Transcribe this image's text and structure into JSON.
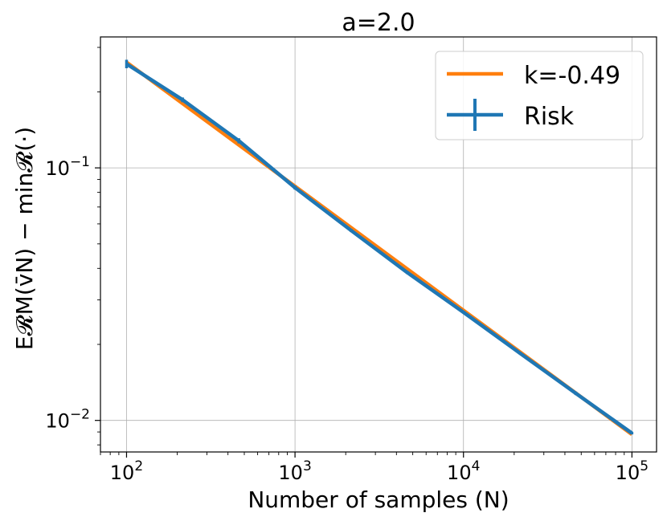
{
  "chart_data": {
    "type": "line",
    "title": "a=2.0",
    "xlabel": "Number of samples (N)",
    "ylabel": "E𝓡M(v̄N) − min𝓡(·)",
    "xscale": "log",
    "yscale": "log",
    "xlim": [
      70,
      140000
    ],
    "ylim": [
      0.0075,
      0.33
    ],
    "grid": true,
    "legend_position": "top-right",
    "x_ticks": [
      {
        "value": 100,
        "base": "10",
        "exp": "2"
      },
      {
        "value": 1000,
        "base": "10",
        "exp": "3"
      },
      {
        "value": 10000,
        "base": "10",
        "exp": "4"
      },
      {
        "value": 100000,
        "base": "10",
        "exp": "5"
      }
    ],
    "y_ticks": [
      {
        "value": 0.1,
        "base": "10",
        "exp": "−1"
      },
      {
        "value": 0.01,
        "base": "10",
        "exp": "−2"
      }
    ],
    "series": [
      {
        "name": "k=-0.49",
        "style": "line",
        "color": "#ff7f0e",
        "x": [
          100,
          100000
        ],
        "y": [
          0.262,
          0.0088
        ]
      },
      {
        "name": "Risk",
        "style": "errorbar",
        "color": "#1f77b4",
        "x": [
          100,
          215,
          464,
          1000,
          2154,
          4642,
          10000,
          21544,
          46416,
          100000
        ],
        "y": [
          0.258,
          0.186,
          0.128,
          0.0835,
          0.0565,
          0.0385,
          0.0268,
          0.0185,
          0.0128,
          0.0089
        ],
        "yerr": [
          0.01,
          0.004,
          0.003,
          0.0015,
          0.0008,
          0.0005,
          0.0003,
          0.0002,
          0.0002,
          0.0001
        ]
      }
    ]
  }
}
